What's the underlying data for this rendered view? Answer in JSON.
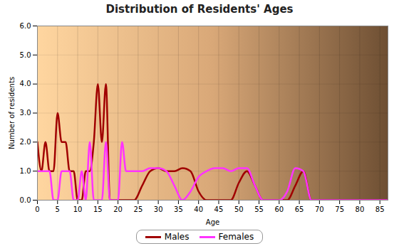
{
  "chart_data": {
    "type": "line",
    "title": "Distribution of Residents' Ages",
    "x_label": "Age",
    "y_label": "Number of residents",
    "x": [
      0,
      1,
      2,
      3,
      4,
      5,
      6,
      7,
      8,
      9,
      10,
      11,
      12,
      13,
      14,
      15,
      16,
      17,
      18,
      19,
      20,
      21,
      22,
      23,
      24,
      26,
      28,
      30,
      32,
      34,
      36,
      38,
      40,
      42,
      44,
      46,
      48,
      50,
      52,
      54,
      56,
      58,
      60,
      62,
      64,
      66,
      68,
      70,
      75,
      80,
      87
    ],
    "series": [
      {
        "name": "Males",
        "color": "#a00000",
        "values": [
          2,
          1,
          2,
          1,
          1,
          3,
          2,
          2,
          1,
          1,
          0,
          0,
          1,
          1,
          2,
          4,
          2,
          4,
          0,
          0,
          0,
          0,
          0,
          0,
          0,
          0.5,
          1,
          1.1,
          1,
          1,
          1.1,
          1,
          0.3,
          0,
          0,
          0,
          0,
          0.6,
          1,
          0.5,
          0,
          0,
          0,
          0,
          0.5,
          1,
          0,
          0,
          0,
          0,
          0
        ]
      },
      {
        "name": "Females",
        "color": "#ff33ff",
        "values": [
          1,
          1,
          1,
          1,
          0,
          0,
          1,
          1,
          1,
          0,
          0,
          1,
          0,
          2,
          0,
          0,
          0,
          2,
          0,
          0,
          0,
          2,
          1,
          1,
          1,
          1,
          1.1,
          1.1,
          1,
          0.5,
          0,
          0.3,
          0.8,
          1,
          1.1,
          1.1,
          1,
          1.1,
          1.1,
          0.5,
          0,
          0,
          0,
          0.3,
          1.1,
          1,
          0,
          0,
          0,
          0,
          0
        ]
      }
    ],
    "xlim": [
      0,
      87
    ],
    "xticks": [
      0,
      5,
      10,
      15,
      20,
      25,
      30,
      35,
      40,
      45,
      50,
      55,
      60,
      65,
      70,
      75,
      80,
      85
    ],
    "ylim": [
      0,
      6
    ],
    "yticks": [
      0,
      1,
      2,
      3,
      4,
      5,
      6
    ],
    "grid": true,
    "legend": "bottom"
  }
}
